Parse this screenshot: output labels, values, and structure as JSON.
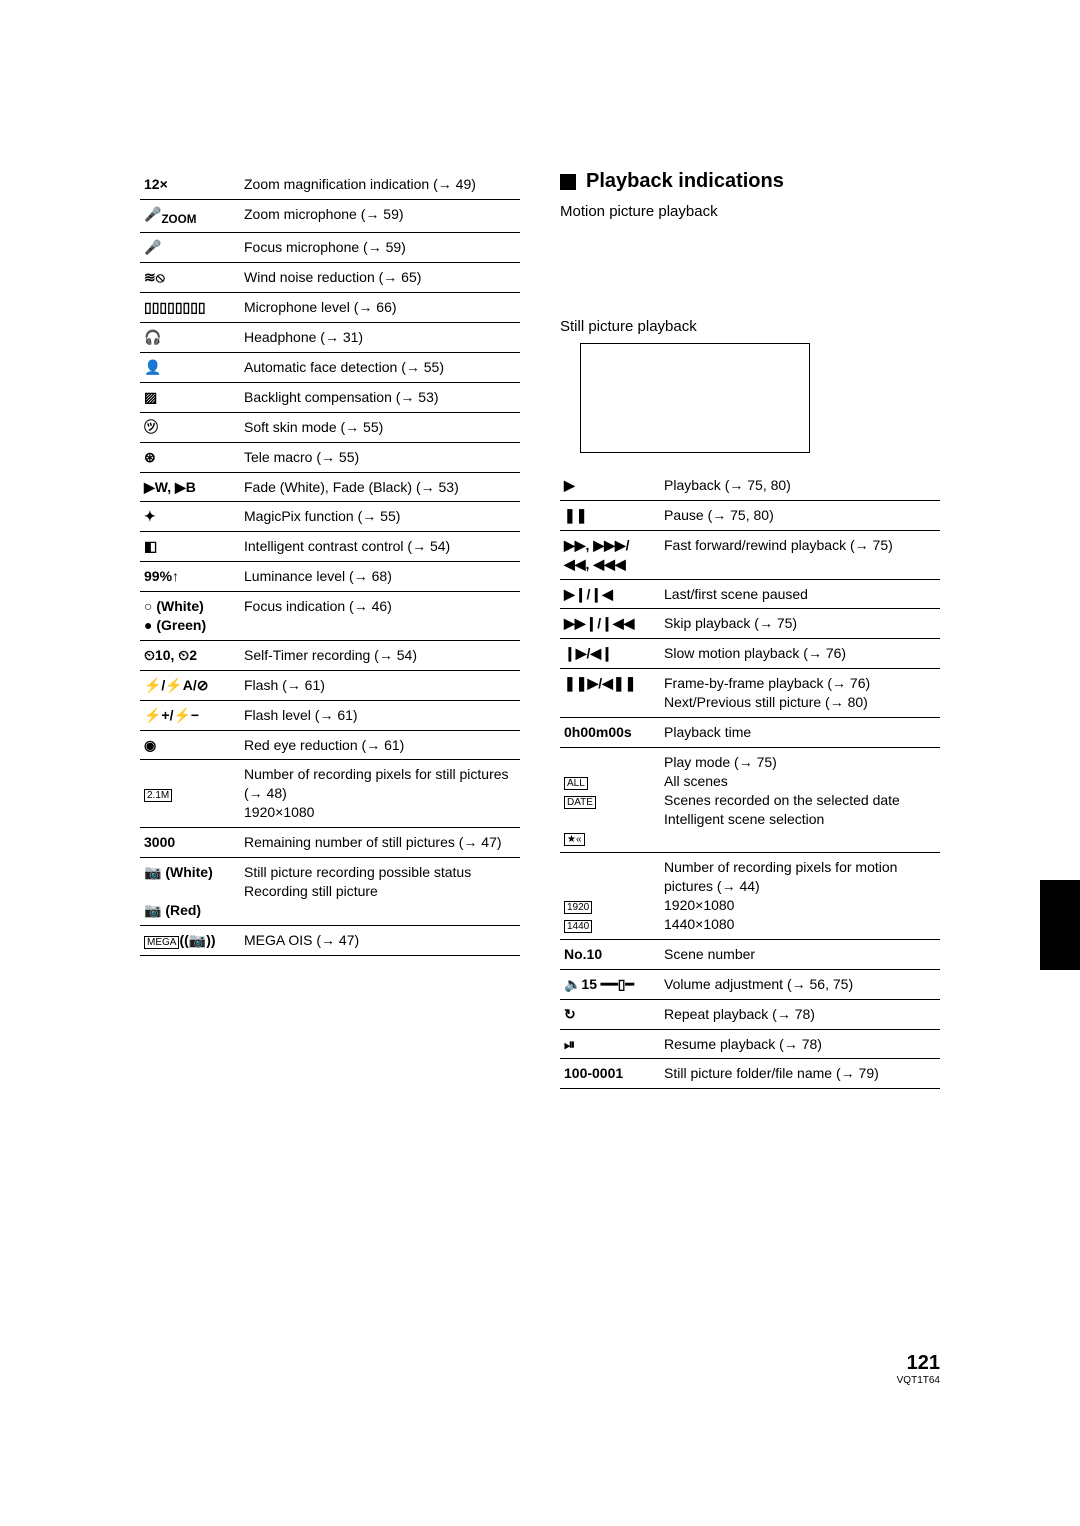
{
  "page": {
    "number": "121",
    "doc_code": "VQT1T64"
  },
  "left_table": [
    {
      "sym": "12×",
      "desc": "Zoom magnification indication (→ 49)"
    },
    {
      "sym": "🎤<sub>ZOOM</sub>",
      "desc": "Zoom microphone (→ 59)"
    },
    {
      "sym": "🎤",
      "desc": "Focus microphone (→ 59)"
    },
    {
      "sym": "≋⦸",
      "desc": "Wind noise reduction (→ 65)"
    },
    {
      "sym": "▯▯▯▯▯▯▯▯",
      "desc": "Microphone level (→ 66)"
    },
    {
      "sym": "🎧",
      "desc": "Headphone (→ 31)"
    },
    {
      "sym": "👤",
      "desc": "Automatic face detection (→ 55)"
    },
    {
      "sym": "▨",
      "desc": "Backlight compensation (→ 53)"
    },
    {
      "sym": "㋡",
      "desc": "Soft skin mode (→ 55)"
    },
    {
      "sym": "⊛",
      "desc": "Tele macro (→ 55)"
    },
    {
      "sym": "▶W, ▶B",
      "desc": "Fade (White), Fade (Black) (→ 53)"
    },
    {
      "sym": "✦",
      "desc": "MagicPix function (→ 55)"
    },
    {
      "sym": "◧",
      "desc": "Intelligent contrast control (→ 54)"
    },
    {
      "sym": "99%↑",
      "desc": "Luminance level (→ 68)"
    },
    {
      "sym": "○ (White)\n● (Green)",
      "desc": "Focus indication (→ 46)"
    },
    {
      "sym": "⏲10, ⏲2",
      "desc": "Self-Timer recording (→ 54)"
    },
    {
      "sym": "⚡/⚡A/⊘",
      "desc": "Flash (→ 61)"
    },
    {
      "sym": "⚡+/⚡−",
      "desc": "Flash level (→ 61)"
    },
    {
      "sym": "◉",
      "desc": "Red eye reduction (→ 61)"
    },
    {
      "sym": "\n[2.1M]",
      "desc": "Number of recording pixels for still pictures (→ 48)\n1920×1080"
    },
    {
      "sym": "3000",
      "desc": "Remaining number of still pictures (→ 47)"
    },
    {
      "sym": "📷 (White)\n\n📷 (Red)",
      "desc": "Still picture recording possible status\nRecording still picture"
    },
    {
      "sym": "[MEGA]((📷))",
      "desc": "MEGA OIS (→ 47)"
    }
  ],
  "playback": {
    "heading": "Playback indications",
    "motion_label": "Motion picture playback",
    "still_label": "Still picture playback"
  },
  "right_table": [
    {
      "sym": "▶",
      "desc": "Playback (→ 75, 80)"
    },
    {
      "sym": "❚❚",
      "desc": "Pause (→ 75, 80)"
    },
    {
      "sym": "▶▶, ▶▶▶/\n◀◀, ◀◀◀",
      "desc": "Fast forward/rewind playback (→ 75)"
    },
    {
      "sym": "▶❙/❙◀",
      "desc": "Last/first scene paused"
    },
    {
      "sym": "▶▶❙/❙◀◀",
      "desc": "Skip playback (→ 75)"
    },
    {
      "sym": "❙▶/◀❙",
      "desc": "Slow motion playback (→ 76)"
    },
    {
      "sym": "❚❚▶/◀❚❚",
      "desc": "Frame-by-frame playback (→ 76)\nNext/Previous still picture (→ 80)"
    },
    {
      "sym": "0h00m00s",
      "desc": "Playback time"
    },
    {
      "sym": "\n[ALL]\n[DATE]\n\n[★«]",
      "desc": "Play mode (→ 75)\nAll scenes\nScenes recorded on the selected date\nIntelligent scene selection"
    },
    {
      "sym": "\n\n[1920]\n[1440]",
      "desc": "Number of recording pixels for motion pictures (→ 44)\n1920×1080\n1440×1080"
    },
    {
      "sym": "No.10",
      "desc": "Scene number"
    },
    {
      "sym": "🔈15 ━━▯━",
      "desc": "Volume adjustment (→ 56, 75)"
    },
    {
      "sym": "↻",
      "desc": "Repeat playback (→ 78)"
    },
    {
      "sym": "⏯",
      "desc": "Resume playback (→ 78)"
    },
    {
      "sym": "100-0001",
      "desc": "Still picture folder/file name (→ 79)"
    }
  ]
}
